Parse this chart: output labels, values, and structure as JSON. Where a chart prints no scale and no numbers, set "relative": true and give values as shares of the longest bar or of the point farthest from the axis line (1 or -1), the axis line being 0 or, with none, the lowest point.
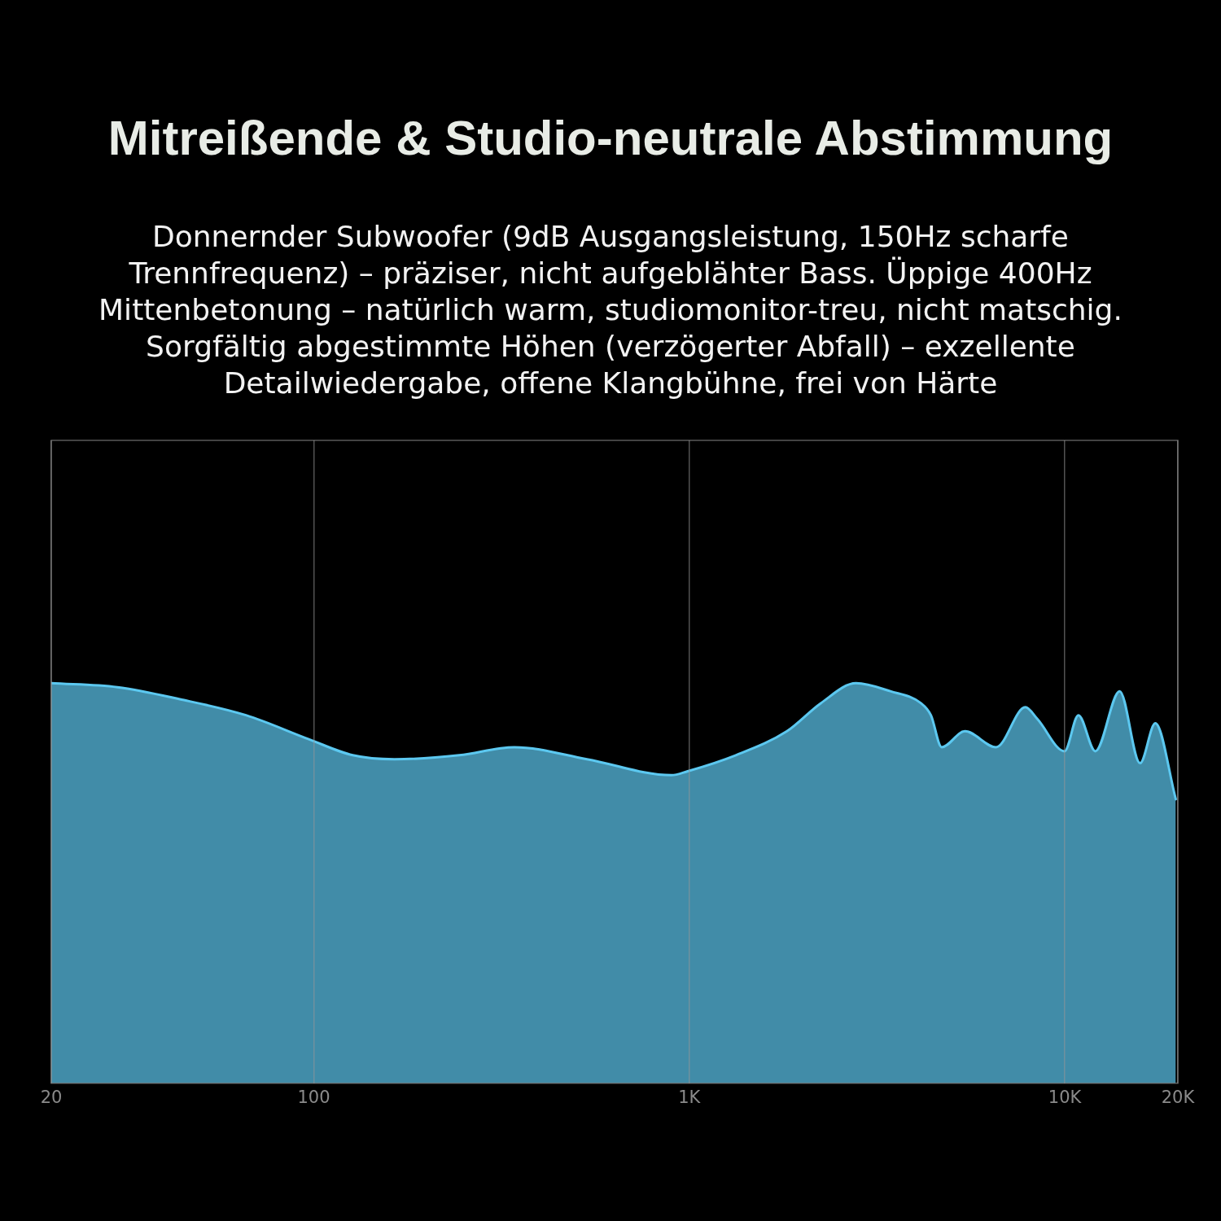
{
  "chart_data": {
    "type": "area",
    "title": "Mitreißende & Studio-neutrale Abstimmung",
    "subtitle": "Donnernder Subwoofer (9dB Ausgangsleistung, 150Hz scharfe Trennfrequenz) – präziser, nicht aufgeblähter Bass. Üppige 400Hz Mittenbetonung – natürlich warm, studiomonitor-treu, nicht matschig. Sorgfältig abgestimmte Höhen (verzögerter Abfall) – exzellente Detailwiedergabe, offene Klangbühne, frei von Härte",
    "relative": true,
    "log": "x",
    "grid": "x",
    "legend": false,
    "marker": "none",
    "x": [
      20,
      30,
      44,
      66,
      97,
      127,
      164,
      244,
      342,
      534,
      896,
      990,
      1330,
      1820,
      2240,
      2780,
      3430,
      4140,
      4400,
      4700,
      5420,
      6560,
      7850,
      8460,
      9980,
      10870,
      12060,
      14000,
      15860,
      17420,
      19750
    ],
    "xlim": [
      20,
      20000
    ],
    "xticks": [
      20,
      100,
      {
        "value": 1000,
        "label": "1K"
      },
      {
        "value": 10000,
        "label": "10K"
      },
      {
        "value": 20000,
        "label": "20K"
      }
    ],
    "series": [
      {
        "color": "#5cc8f0",
        "values": [
          1.0,
          0.99,
          0.96,
          0.92,
          0.86,
          0.82,
          0.81,
          0.82,
          0.84,
          0.81,
          0.77,
          0.78,
          0.82,
          0.88,
          0.95,
          1.0,
          0.98,
          0.95,
          0.92,
          0.84,
          0.88,
          0.84,
          0.94,
          0.91,
          0.83,
          0.92,
          0.83,
          0.98,
          0.8,
          0.9,
          0.71
        ]
      }
    ]
  }
}
